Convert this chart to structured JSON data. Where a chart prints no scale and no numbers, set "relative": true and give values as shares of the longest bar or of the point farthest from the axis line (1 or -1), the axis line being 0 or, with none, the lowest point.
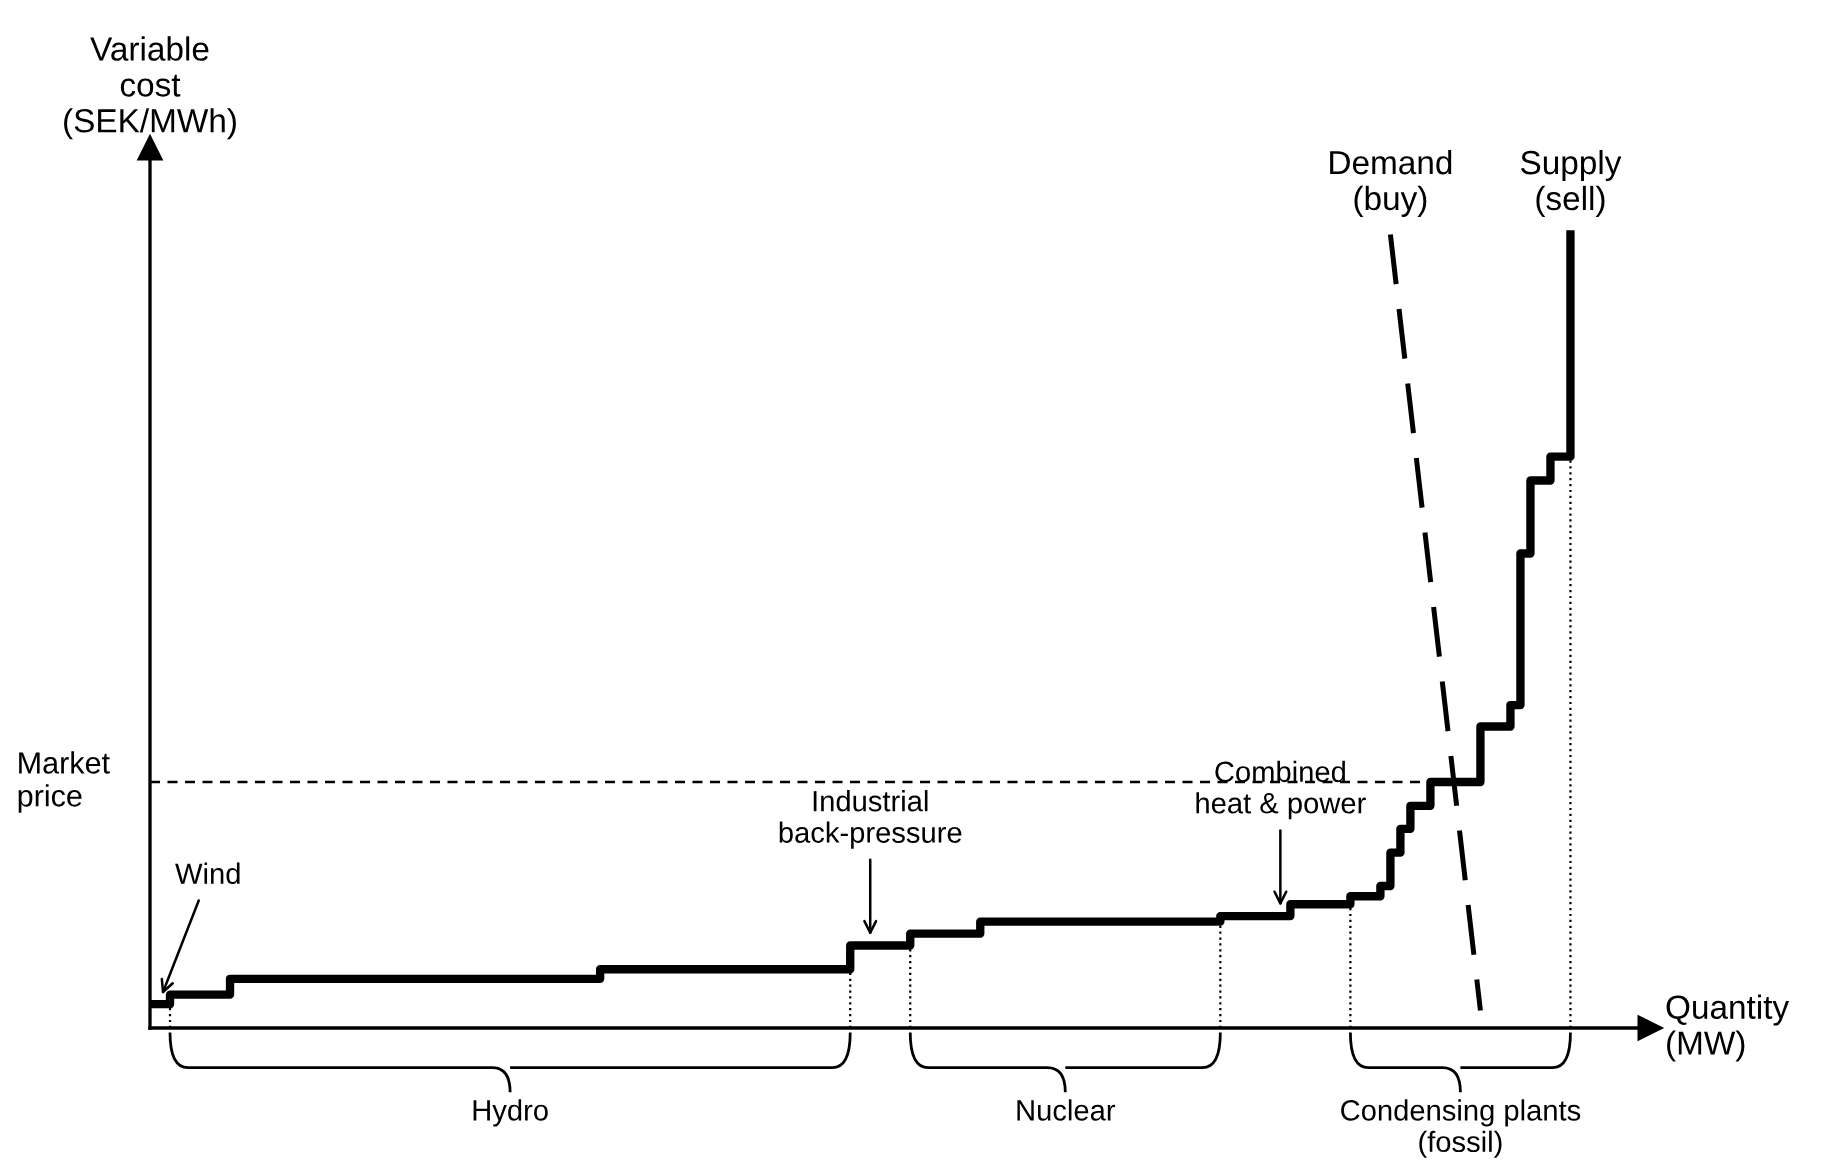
{
  "chart_data": {
    "type": "step",
    "relative": true,
    "xlabel": "Quantity\n(MW)",
    "ylabel": "Variable\ncost\n(SEK/MWh)",
    "categories": [
      null,
      null,
      null,
      null,
      null,
      null,
      null,
      null,
      null,
      null,
      null,
      null,
      null,
      null,
      null,
      null,
      null,
      null,
      null,
      null,
      null,
      null,
      null,
      null,
      null,
      null,
      null,
      null,
      null,
      null,
      null,
      null,
      null,
      null,
      null,
      null,
      null,
      null,
      null,
      null,
      null,
      null,
      null,
      null,
      null,
      null,
      null,
      null,
      null,
      null,
      null,
      null,
      null,
      null,
      null,
      null,
      null,
      null,
      null,
      null,
      null,
      null,
      null,
      null,
      null,
      null,
      null,
      null,
      null,
      null,
      null,
      null,
      null,
      null,
      null,
      null,
      null,
      null,
      null,
      null,
      null,
      null,
      null,
      null,
      null,
      null,
      null,
      null,
      null,
      null,
      null,
      null,
      null,
      null,
      null,
      null,
      null,
      null,
      null,
      null,
      null,
      null,
      null,
      null,
      null,
      null,
      null,
      null,
      null,
      null,
      null,
      null,
      null,
      null,
      null,
      null,
      null,
      null,
      null,
      null,
      null,
      null,
      null,
      null,
      null,
      null,
      null,
      null,
      null,
      null,
      null,
      null,
      null,
      null,
      null,
      null,
      null,
      null,
      null,
      null,
      null,
      null,
      null
    ],
    "series": [
      {
        "name": "Supply\n(sell)",
        "color": "#000000",
        "line_style": "solid",
        "values": [
          0.03,
          0.03,
          0.042,
          0.042,
          0.042,
          0.042,
          0.042,
          0.042,
          0.062,
          0.062,
          0.062,
          0.062,
          0.062,
          0.062,
          0.062,
          0.062,
          0.062,
          0.062,
          0.062,
          0.062,
          0.062,
          0.062,
          0.062,
          0.062,
          0.062,
          0.062,
          0.062,
          0.062,
          0.062,
          0.062,
          0.062,
          0.062,
          0.062,
          0.062,
          0.062,
          0.062,
          0.062,
          0.062,
          0.062,
          0.062,
          0.062,
          0.062,
          0.062,
          0.062,
          0.062,
          0.074,
          0.074,
          0.074,
          0.074,
          0.074,
          0.074,
          0.074,
          0.074,
          0.074,
          0.074,
          0.074,
          0.074,
          0.074,
          0.074,
          0.074,
          0.074,
          0.074,
          0.074,
          0.074,
          0.074,
          0.074,
          0.074,
          0.074,
          0.074,
          0.074,
          0.104,
          0.104,
          0.104,
          0.104,
          0.104,
          0.104,
          0.119,
          0.119,
          0.119,
          0.119,
          0.119,
          0.119,
          0.119,
          0.134,
          0.134,
          0.134,
          0.134,
          0.134,
          0.134,
          0.134,
          0.134,
          0.134,
          0.134,
          0.134,
          0.134,
          0.134,
          0.134,
          0.134,
          0.134,
          0.134,
          0.134,
          0.134,
          0.134,
          0.134,
          0.134,
          0.134,
          0.134,
          0.141,
          0.141,
          0.141,
          0.141,
          0.141,
          0.141,
          0.141,
          0.156,
          0.156,
          0.156,
          0.156,
          0.156,
          0.156,
          0.166,
          0.166,
          0.166,
          0.179,
          0.221,
          0.251,
          0.28,
          0.28,
          0.31,
          0.31,
          0.31,
          0.31,
          0.31,
          0.38,
          0.38,
          0.38,
          0.407,
          0.598,
          0.69,
          0.69,
          0.72,
          0.72,
          1.0
        ]
      },
      {
        "name": "Demand\n(buy)",
        "type": "line",
        "color": "#000000",
        "line_style": "dashed",
        "values": [
          null,
          null,
          null,
          null,
          null,
          null,
          null,
          null,
          null,
          null,
          null,
          null,
          null,
          null,
          null,
          null,
          null,
          null,
          null,
          null,
          null,
          null,
          null,
          null,
          null,
          null,
          null,
          null,
          null,
          null,
          null,
          null,
          null,
          null,
          null,
          null,
          null,
          null,
          null,
          null,
          null,
          null,
          null,
          null,
          null,
          null,
          null,
          null,
          null,
          null,
          null,
          null,
          null,
          null,
          null,
          null,
          null,
          null,
          null,
          null,
          null,
          null,
          null,
          null,
          null,
          null,
          null,
          null,
          null,
          null,
          null,
          null,
          null,
          null,
          null,
          null,
          null,
          null,
          null,
          null,
          null,
          null,
          null,
          null,
          null,
          null,
          null,
          null,
          null,
          null,
          null,
          null,
          null,
          null,
          null,
          null,
          null,
          null,
          null,
          null,
          null,
          null,
          null,
          null,
          null,
          null,
          null,
          null,
          null,
          null,
          null,
          null,
          null,
          null,
          null,
          null,
          null,
          null,
          null,
          null,
          null,
          null,
          null,
          null,
          1.0,
          0.891,
          0.783,
          0.674,
          0.565,
          0.457,
          0.348,
          0.239,
          0.13,
          0.022,
          null,
          null,
          null,
          null,
          null,
          null,
          null,
          null,
          null
        ]
      }
    ],
    "ref_lines": [
      {
        "axis": "y",
        "value": 0.31,
        "label": "Market\nprice",
        "line_style": "dashed",
        "color": "#000000"
      }
    ],
    "annotations": [
      "Wind",
      "Industrial\nback-pressure",
      "Combined\nheat & power",
      "Hydro",
      "Nuclear",
      "Condensing plants\n(fossil)"
    ]
  }
}
